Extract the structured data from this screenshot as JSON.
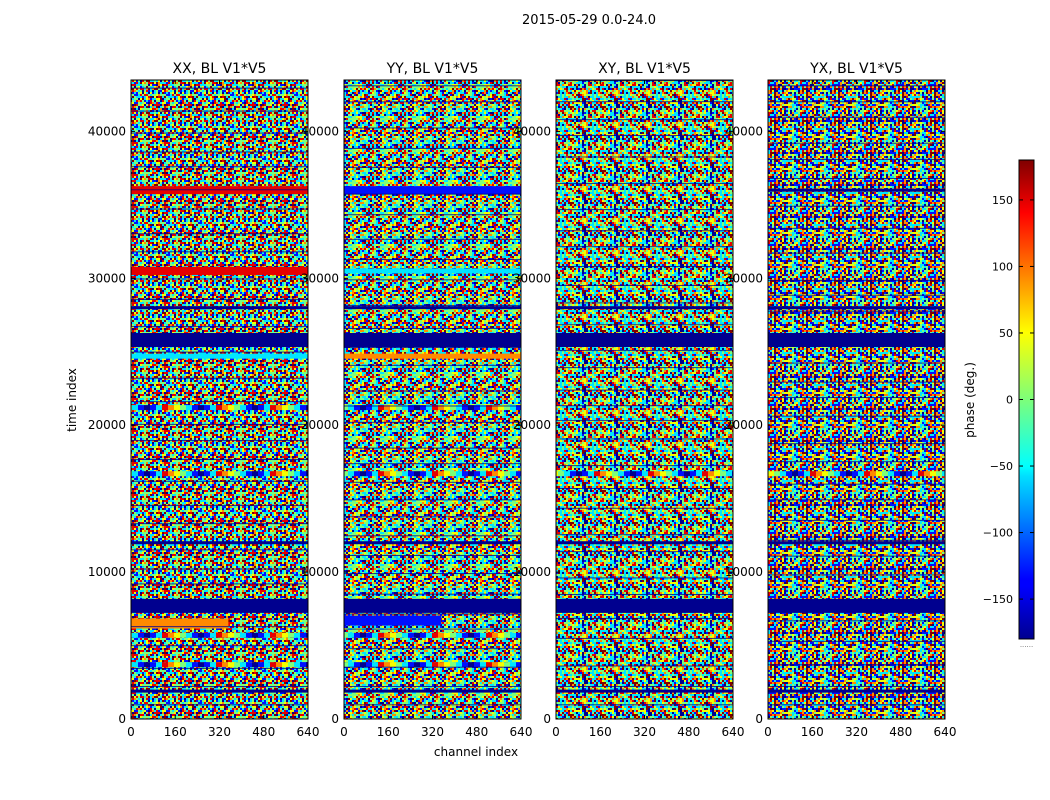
{
  "figure": {
    "suptitle": "2015-05-29 0.0-24.0",
    "xlabel": "channel index",
    "ylabel": "time index"
  },
  "chart_data": [
    {
      "type": "heatmap",
      "title": "XX, BL V1*V5",
      "x_ticks": [
        0,
        160,
        320,
        480,
        640
      ],
      "y_ticks": [
        0,
        10000,
        20000,
        30000,
        40000
      ],
      "xlim": [
        0,
        640
      ],
      "ylim": [
        0,
        43500
      ],
      "features": [
        {
          "y": 1900,
          "pattern": "blue-stripe"
        },
        {
          "y": 3700,
          "pattern": "fringe-red-blue"
        },
        {
          "y": 5700,
          "pattern": "fringe-red-blue"
        },
        {
          "y": 6500,
          "pattern": "red-blob"
        },
        {
          "y": 7700,
          "pattern": "navy-band"
        },
        {
          "y": 12000,
          "pattern": "blue-stripe"
        },
        {
          "y": 16700,
          "pattern": "fringe-red-blue"
        },
        {
          "y": 21200,
          "pattern": "fringe-red-blue"
        },
        {
          "y": 24700,
          "pattern": "cyan-band"
        },
        {
          "y": 25800,
          "pattern": "navy-band"
        },
        {
          "y": 28000,
          "pattern": "blue-stripe"
        },
        {
          "y": 30500,
          "pattern": "red-band"
        },
        {
          "y": 36000,
          "pattern": "red-band"
        }
      ]
    },
    {
      "type": "heatmap",
      "title": "YY, BL V1*V5",
      "x_ticks": [
        0,
        160,
        320,
        480,
        640
      ],
      "y_ticks": [
        0,
        10000,
        20000,
        30000,
        40000
      ],
      "xlim": [
        0,
        640
      ],
      "ylim": [
        0,
        43500
      ],
      "features": [
        {
          "y": 1900,
          "pattern": "blue-stripe"
        },
        {
          "y": 3700,
          "pattern": "fringe-red-blue"
        },
        {
          "y": 5700,
          "pattern": "fringe-red-blue"
        },
        {
          "y": 6700,
          "pattern": "blue-blob"
        },
        {
          "y": 7700,
          "pattern": "navy-band"
        },
        {
          "y": 12000,
          "pattern": "blue-stripe"
        },
        {
          "y": 16700,
          "pattern": "fringe-red-blue"
        },
        {
          "y": 21200,
          "pattern": "fringe-red-blue"
        },
        {
          "y": 24700,
          "pattern": "orange-band"
        },
        {
          "y": 25800,
          "pattern": "navy-band"
        },
        {
          "y": 28000,
          "pattern": "blue-stripe"
        },
        {
          "y": 30500,
          "pattern": "cyan-band"
        },
        {
          "y": 36000,
          "pattern": "blue-band"
        }
      ]
    },
    {
      "type": "heatmap",
      "title": "XY, BL V1*V5",
      "x_ticks": [
        0,
        160,
        320,
        480,
        640
      ],
      "y_ticks": [
        0,
        10000,
        20000,
        30000,
        40000
      ],
      "xlim": [
        0,
        640
      ],
      "ylim": [
        0,
        43500
      ],
      "features": [
        {
          "y": 1900,
          "pattern": "blue-stripe"
        },
        {
          "y": 7700,
          "pattern": "navy-band"
        },
        {
          "y": 12000,
          "pattern": "blue-stripe"
        },
        {
          "y": 16700,
          "pattern": "fringe-red-blue"
        },
        {
          "y": 25800,
          "pattern": "navy-band"
        },
        {
          "y": 28000,
          "pattern": "blue-stripe"
        }
      ]
    },
    {
      "type": "heatmap",
      "title": "YX, BL V1*V5",
      "x_ticks": [
        0,
        160,
        320,
        480,
        640
      ],
      "y_ticks": [
        0,
        10000,
        20000,
        30000,
        40000
      ],
      "xlim": [
        0,
        640
      ],
      "ylim": [
        0,
        43500
      ],
      "features": [
        {
          "y": 1900,
          "pattern": "blue-stripe"
        },
        {
          "y": 7700,
          "pattern": "navy-band"
        },
        {
          "y": 12000,
          "pattern": "blue-stripe"
        },
        {
          "y": 16700,
          "pattern": "fringe-red-blue"
        },
        {
          "y": 25800,
          "pattern": "navy-band"
        },
        {
          "y": 28000,
          "pattern": "blue-stripe"
        },
        {
          "y": 36000,
          "pattern": "blue-stripe"
        }
      ]
    }
  ],
  "colorbar": {
    "label": "phase (deg.)",
    "ticks": [
      150,
      100,
      50,
      0,
      -50,
      -100,
      -150
    ],
    "range": [
      -180,
      180
    ],
    "colormap": "jet",
    "footer": "......"
  },
  "colors": {
    "navy": "#00008f",
    "blue": "#0010ff",
    "cyan": "#00e5ff",
    "green": "#7dff7a",
    "yellow": "#f4ff00",
    "orange": "#ff8a00",
    "red": "#e60000",
    "darkred": "#800000"
  }
}
